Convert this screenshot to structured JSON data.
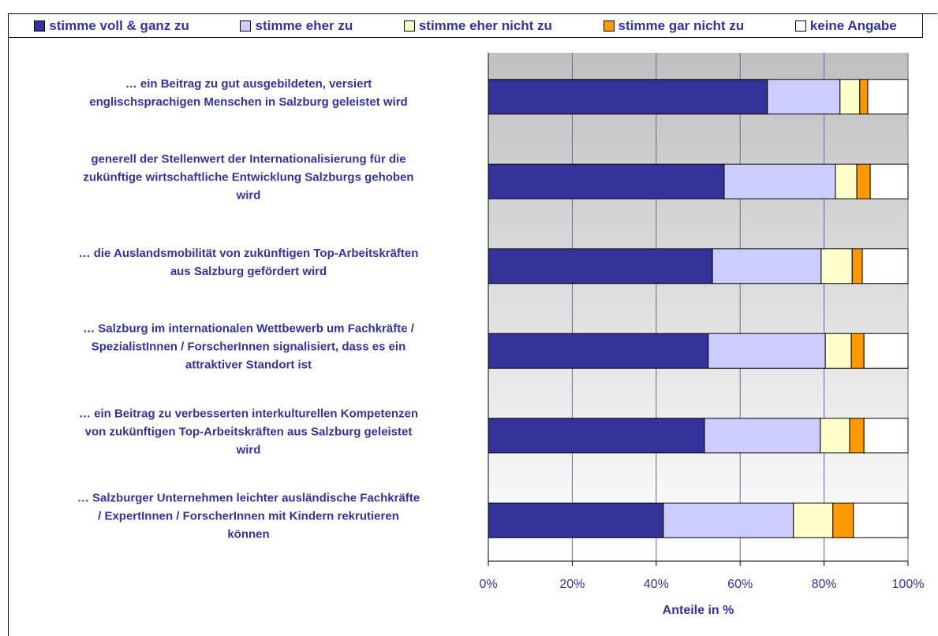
{
  "chart_data": {
    "type": "stacked_barh",
    "categories": [
      "… ein Beitrag zu gut ausgebildeten, versiert\nenglischsprachigen Menschen in Salzburg geleistet wird",
      "generell der Stellenwert der Internationalisierung für die\nzukünftige wirtschaftliche Entwicklung Salzburgs gehoben\nwird",
      "… die Auslandsmobilität von zukünftigen Top-Arbeitskräften\naus Salzburg gefördert wird",
      "… Salzburg im internationalen Wettbewerb um Fachkräfte /\nSpezialistInnen / ForscherInnen signalisiert, dass es ein\nattraktiver Standort ist",
      "… ein Beitrag zu verbesserten interkulturellen Kompetenzen\nvon zukünftigen Top-Arbeitskräften aus Salzburg geleistet\nwird",
      "… Salzburger Unternehmen leichter ausländische Fachkräfte\n/  ExpertInnen / ForscherInnen mit Kindern rekrutieren\nkönnen"
    ],
    "series": [
      {
        "name": "stimme voll & ganz zu",
        "color": "#333399",
        "values": [
          66.5,
          56.2,
          53.4,
          52.4,
          51.5,
          41.7
        ]
      },
      {
        "name": "stimme eher zu",
        "color": "#ccccff",
        "values": [
          17.3,
          26.5,
          25.9,
          27.9,
          27.6,
          31.0
        ]
      },
      {
        "name": "stimme eher nicht zu",
        "color": "#ffffcc",
        "values": [
          4.7,
          5.1,
          7.4,
          6.2,
          7.0,
          9.4
        ]
      },
      {
        "name": "stimme gar nicht zu",
        "color": "#ff9900",
        "values": [
          1.9,
          3.2,
          2.4,
          3.0,
          3.4,
          4.9
        ]
      },
      {
        "name": "keine Angabe",
        "color": "#ffffff",
        "values": [
          9.6,
          9.0,
          10.9,
          10.5,
          10.5,
          13.0
        ]
      }
    ],
    "xlabel": "Anteile in %",
    "xlim": [
      0,
      100
    ],
    "xticks": [
      {
        "value": 0,
        "label": "0%"
      },
      {
        "value": 20,
        "label": "20%"
      },
      {
        "value": 40,
        "label": "40%"
      },
      {
        "value": 60,
        "label": "60%"
      },
      {
        "value": 80,
        "label": "80%"
      },
      {
        "value": 100,
        "label": "100%"
      }
    ],
    "grid": true
  }
}
